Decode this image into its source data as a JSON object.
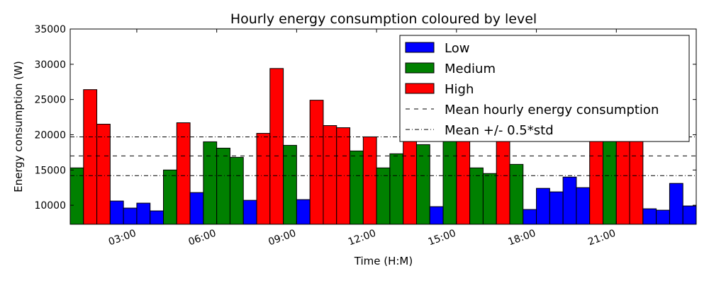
{
  "chart_data": {
    "type": "bar",
    "title": "Hourly energy consumption coloured by level",
    "xlabel": "Time (H:M)",
    "ylabel": "Energy consumption (W)",
    "ylim": [
      7300,
      35000
    ],
    "yticks": [
      10000,
      15000,
      20000,
      25000,
      30000,
      35000
    ],
    "yticklabels": [
      "10000",
      "15000",
      "20000",
      "25000",
      "30000",
      "35000"
    ],
    "xlim": [
      0,
      47
    ],
    "xticks": [
      5,
      11,
      17,
      23,
      29,
      35,
      41
    ],
    "xticklabels": [
      "03:00",
      "06:00",
      "09:00",
      "12:00",
      "15:00",
      "18:00",
      "21:00"
    ],
    "colors": {
      "Low": "#0000ff",
      "Medium": "#008000",
      "High": "#ff0000"
    },
    "legend": {
      "placement": "top-right",
      "entries": [
        {
          "label": "Low",
          "kind": "patch",
          "color": "#0000ff"
        },
        {
          "label": "Medium",
          "kind": "patch",
          "color": "#008000"
        },
        {
          "label": "High",
          "kind": "patch",
          "color": "#ff0000"
        },
        {
          "label": "Mean hourly energy consumption",
          "kind": "dashed"
        },
        {
          "label": "Mean +/-  0.5*std",
          "kind": "dashdot"
        }
      ]
    },
    "lines": {
      "mean": 17000,
      "upper": 19700,
      "lower": 14200
    },
    "bars": [
      {
        "value": 15300,
        "level": "Medium"
      },
      {
        "value": 26400,
        "level": "High"
      },
      {
        "value": 21500,
        "level": "High"
      },
      {
        "value": 10600,
        "level": "Low"
      },
      {
        "value": 9600,
        "level": "Low"
      },
      {
        "value": 10300,
        "level": "Low"
      },
      {
        "value": 9200,
        "level": "Low"
      },
      {
        "value": 15000,
        "level": "Medium"
      },
      {
        "value": 21700,
        "level": "High"
      },
      {
        "value": 11800,
        "level": "Low"
      },
      {
        "value": 19000,
        "level": "Medium"
      },
      {
        "value": 18100,
        "level": "Medium"
      },
      {
        "value": 16800,
        "level": "Medium"
      },
      {
        "value": 10700,
        "level": "Low"
      },
      {
        "value": 20200,
        "level": "High"
      },
      {
        "value": 29400,
        "level": "High"
      },
      {
        "value": 18500,
        "level": "Medium"
      },
      {
        "value": 10800,
        "level": "Low"
      },
      {
        "value": 24900,
        "level": "High"
      },
      {
        "value": 21300,
        "level": "High"
      },
      {
        "value": 21000,
        "level": "High"
      },
      {
        "value": 17700,
        "level": "Medium"
      },
      {
        "value": 19700,
        "level": "High"
      },
      {
        "value": 15300,
        "level": "Medium"
      },
      {
        "value": 17300,
        "level": "Medium"
      },
      {
        "value": 20000,
        "level": "High"
      },
      {
        "value": 18600,
        "level": "Medium"
      },
      {
        "value": 9800,
        "level": "Low"
      },
      {
        "value": 19500,
        "level": "Medium"
      },
      {
        "value": 20500,
        "level": "High"
      },
      {
        "value": 15300,
        "level": "Medium"
      },
      {
        "value": 14500,
        "level": "Medium"
      },
      {
        "value": 20000,
        "level": "High"
      },
      {
        "value": 15800,
        "level": "Medium"
      },
      {
        "value": 9400,
        "level": "Low"
      },
      {
        "value": 12400,
        "level": "Low"
      },
      {
        "value": 11900,
        "level": "Low"
      },
      {
        "value": 14000,
        "level": "Low"
      },
      {
        "value": 12500,
        "level": "Low"
      },
      {
        "value": 20500,
        "level": "High"
      },
      {
        "value": 19500,
        "level": "Medium"
      },
      {
        "value": 20000,
        "level": "High"
      },
      {
        "value": 20000,
        "level": "High"
      },
      {
        "value": 9500,
        "level": "Low"
      },
      {
        "value": 9300,
        "level": "Low"
      },
      {
        "value": 13100,
        "level": "Low"
      },
      {
        "value": 9900,
        "level": "Low"
      }
    ]
  }
}
